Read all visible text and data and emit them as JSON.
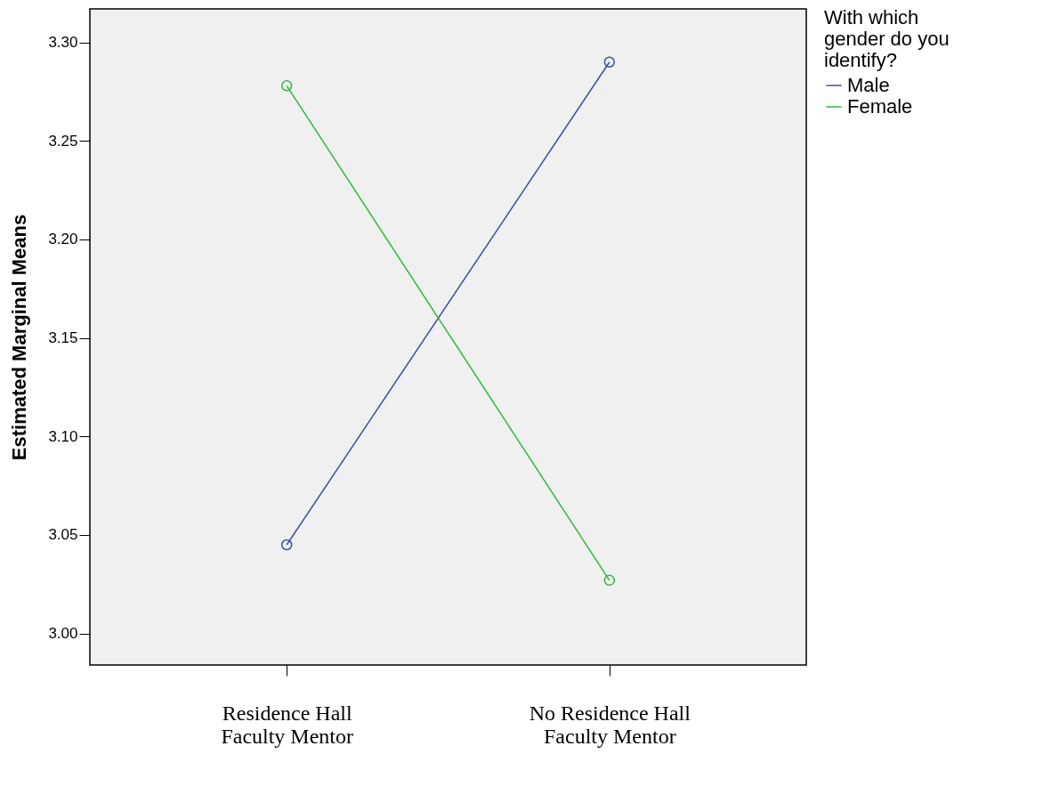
{
  "chart_data": {
    "type": "line",
    "ylabel": "Estimated Marginal Means",
    "legend_title": "With which gender do you identify?",
    "legend": "top right",
    "marker": "circle",
    "categories": [
      "Residence Hall Faculty Mentor",
      "No Residence Hall Faculty Mentor"
    ],
    "series": [
      {
        "name": "Male",
        "color": "#3f4fa5",
        "values": [
          3.045,
          3.29
        ]
      },
      {
        "name": "Female",
        "color": "#2fb83f",
        "values": [
          3.278,
          3.027
        ]
      }
    ],
    "ylim": [
      2.984,
      3.317
    ],
    "yticks": [
      {
        "value": 3.0,
        "label": "3.00"
      },
      3.05,
      {
        "value": 3.1,
        "label": "3.10"
      },
      3.15,
      {
        "value": 3.2,
        "label": "3.20"
      },
      3.25,
      {
        "value": 3.3,
        "label": "3.30"
      }
    ]
  }
}
